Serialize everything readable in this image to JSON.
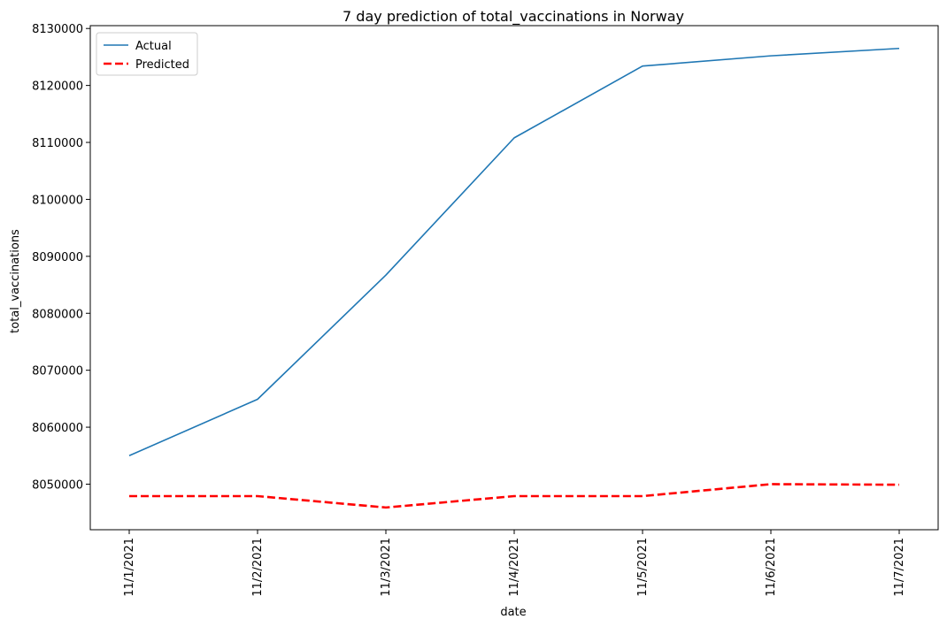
{
  "chart_data": {
    "type": "line",
    "title": "7 day prediction of total_vaccinations in Norway",
    "xlabel": "date",
    "ylabel": "total_vaccinations",
    "categories": [
      "11/1/2021",
      "11/2/2021",
      "11/3/2021",
      "11/4/2021",
      "11/5/2021",
      "11/6/2021",
      "11/7/2021"
    ],
    "ylim": [
      8042000,
      8130500
    ],
    "yticks": [
      8050000,
      8060000,
      8070000,
      8080000,
      8090000,
      8100000,
      8110000,
      8120000,
      8130000
    ],
    "grid": false,
    "legend_position": "top-left",
    "series": [
      {
        "name": "Actual",
        "color": "#1f77b4",
        "style": "solid",
        "values": [
          8055000,
          8064900,
          8086700,
          8110800,
          8123400,
          8125200,
          8126500
        ]
      },
      {
        "name": "Predicted",
        "color": "#ff0000",
        "style": "dashed",
        "values": [
          8047900,
          8047900,
          8045900,
          8047900,
          8047900,
          8050000,
          8049900
        ]
      }
    ]
  }
}
